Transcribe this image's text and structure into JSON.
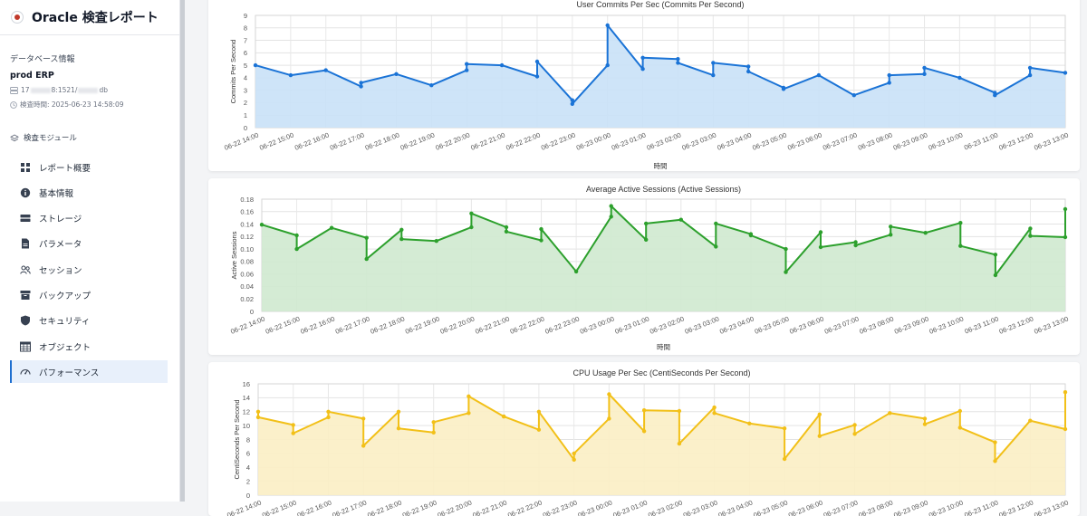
{
  "app": {
    "title": "Oracle 検査レポート"
  },
  "db": {
    "heading": "データベース情報",
    "name": "prod ERP",
    "conn_prefix": "17",
    "conn_mid": "8:1521/",
    "conn_suffix": "db",
    "checked_prefix": "検査時間: 2025-06-23 14:58:09"
  },
  "modules": {
    "heading": "検査モジュール",
    "items": [
      {
        "label": "レポート概要",
        "icon": "grid-icon"
      },
      {
        "label": "基本情報",
        "icon": "info-icon"
      },
      {
        "label": "ストレージ",
        "icon": "storage-icon"
      },
      {
        "label": "パラメータ",
        "icon": "document-icon"
      },
      {
        "label": "セッション",
        "icon": "users-icon"
      },
      {
        "label": "バックアップ",
        "icon": "archive-icon"
      },
      {
        "label": "セキュリティ",
        "icon": "shield-icon"
      },
      {
        "label": "オブジェクト",
        "icon": "table-icon"
      },
      {
        "label": "パフォーマンス",
        "icon": "gauge-icon",
        "active": true
      }
    ]
  },
  "chart_data": [
    {
      "type": "area",
      "title": "User Commits Per Sec (Commits Per Second)",
      "xlabel": "時間",
      "ylabel": "Commits Per Second",
      "ylim": [
        0,
        9
      ],
      "ytick_step": 1,
      "yticks": [
        "0",
        "1",
        "2",
        "3",
        "4",
        "5",
        "6",
        "7",
        "8",
        "9"
      ],
      "categories": [
        "06-22 14:00",
        "06-22 15:00",
        "06-22 16:00",
        "06-22 17:00",
        "06-22 18:00",
        "06-22 19:00",
        "06-22 20:00",
        "06-22 21:00",
        "06-22 22:00",
        "06-22 23:00",
        "06-23 00:00",
        "06-23 01:00",
        "06-23 02:00",
        "06-23 03:00",
        "06-23 04:00",
        "06-23 05:00",
        "06-23 06:00",
        "06-23 07:00",
        "06-23 08:00",
        "06-23 09:00",
        "06-23 10:00",
        "06-23 11:00",
        "06-23 12:00",
        "06-23 13:00"
      ],
      "x": [
        0,
        1,
        2,
        3,
        3,
        4,
        5,
        6,
        6,
        7,
        8,
        8,
        9,
        9,
        10,
        10,
        11,
        11,
        12,
        12,
        13,
        13,
        14,
        14,
        15,
        15,
        16,
        17,
        18,
        18,
        19,
        19,
        20,
        21,
        21,
        22,
        22,
        23
      ],
      "values": [
        5.0,
        4.2,
        4.6,
        3.3,
        3.6,
        4.3,
        3.4,
        4.6,
        5.1,
        5.0,
        4.1,
        5.3,
        2.2,
        1.9,
        5.0,
        8.2,
        4.7,
        5.6,
        5.5,
        5.2,
        4.2,
        5.2,
        4.9,
        4.5,
        3.2,
        3.1,
        4.2,
        2.6,
        3.6,
        4.2,
        4.3,
        4.8,
        4.0,
        2.8,
        2.6,
        4.2,
        4.8,
        4.4
      ],
      "color": "#1a73d6",
      "fill": "#c9e1f7"
    },
    {
      "type": "area",
      "title": "Average Active Sessions (Active Sessions)",
      "xlabel": "時間",
      "ylabel": "Active Sessions",
      "ylim": [
        0,
        0.18
      ],
      "ytick_step": 0.02,
      "yticks": [
        "0",
        "0.02",
        "0.04",
        "0.06",
        "0.08",
        "0.10",
        "0.12",
        "0.14",
        "0.16",
        "0.18"
      ],
      "categories": [
        "06-22 14:00",
        "06-22 15:00",
        "06-22 16:00",
        "06-22 17:00",
        "06-22 18:00",
        "06-22 19:00",
        "06-22 20:00",
        "06-22 21:00",
        "06-22 22:00",
        "06-22 23:00",
        "06-23 00:00",
        "06-23 01:00",
        "06-23 02:00",
        "06-23 03:00",
        "06-23 04:00",
        "06-23 05:00",
        "06-23 06:00",
        "06-23 07:00",
        "06-23 08:00",
        "06-23 09:00",
        "06-23 10:00",
        "06-23 11:00",
        "06-23 12:00",
        "06-23 13:00"
      ],
      "x": [
        0,
        1,
        1,
        2,
        3,
        3,
        4,
        4,
        5,
        6,
        6,
        7,
        7,
        8,
        8,
        9,
        10,
        10,
        11,
        11,
        12,
        13,
        13,
        14,
        14,
        15,
        15,
        16,
        16,
        17,
        17,
        18,
        18,
        19,
        20,
        20,
        21,
        21,
        22,
        22,
        23,
        23
      ],
      "values": [
        0.139,
        0.122,
        0.1,
        0.134,
        0.118,
        0.084,
        0.131,
        0.116,
        0.113,
        0.135,
        0.157,
        0.135,
        0.128,
        0.114,
        0.132,
        0.064,
        0.152,
        0.169,
        0.115,
        0.141,
        0.147,
        0.104,
        0.141,
        0.124,
        0.122,
        0.1,
        0.063,
        0.127,
        0.103,
        0.111,
        0.106,
        0.123,
        0.136,
        0.126,
        0.142,
        0.105,
        0.091,
        0.058,
        0.133,
        0.121,
        0.119,
        0.164
      ],
      "color": "#2ca02c",
      "fill": "#cfe9cf"
    },
    {
      "type": "area",
      "title": "CPU Usage Per Sec (CentiSeconds Per Second)",
      "xlabel": "",
      "ylabel": "CentiSeconds Per Second",
      "ylim": [
        0,
        16
      ],
      "ytick_step": 2,
      "yticks": [
        "0",
        "2",
        "4",
        "6",
        "8",
        "10",
        "12",
        "14",
        "16"
      ],
      "categories": [
        "06-22 14:00",
        "06-22 15:00",
        "06-22 16:00",
        "06-22 17:00",
        "06-22 18:00",
        "06-22 19:00",
        "06-22 20:00",
        "06-22 21:00",
        "06-22 22:00",
        "06-22 23:00",
        "06-23 00:00",
        "06-23 01:00",
        "06-23 02:00",
        "06-23 03:00",
        "06-23 04:00",
        "06-23 05:00",
        "06-23 06:00",
        "06-23 07:00",
        "06-23 08:00",
        "06-23 09:00",
        "06-23 10:00",
        "06-23 11:00",
        "06-23 12:00",
        "06-23 13:00"
      ],
      "x": [
        0,
        0,
        1,
        1,
        2,
        2,
        3,
        3,
        4,
        4,
        5,
        5,
        6,
        6,
        7,
        7,
        8,
        8,
        9,
        9,
        10,
        10,
        11,
        11,
        12,
        12,
        13,
        13,
        14,
        15,
        15,
        16,
        16,
        17,
        17,
        18,
        19,
        19,
        20,
        20,
        21,
        21,
        22,
        23,
        23
      ],
      "values": [
        12.0,
        11.2,
        10.1,
        8.9,
        11.2,
        12.0,
        11.0,
        7.1,
        12.0,
        9.6,
        9.0,
        10.5,
        11.8,
        14.2,
        11.3,
        11.3,
        9.4,
        12.0,
        5.1,
        6.0,
        11.0,
        14.5,
        9.2,
        12.2,
        12.1,
        7.4,
        12.6,
        11.8,
        10.3,
        9.6,
        5.2,
        11.6,
        8.5,
        10.1,
        8.8,
        11.8,
        11.0,
        10.2,
        12.1,
        9.7,
        7.6,
        4.9,
        10.7,
        9.5,
        14.8
      ],
      "color": "#f2c018",
      "fill": "#fbeec4"
    }
  ]
}
